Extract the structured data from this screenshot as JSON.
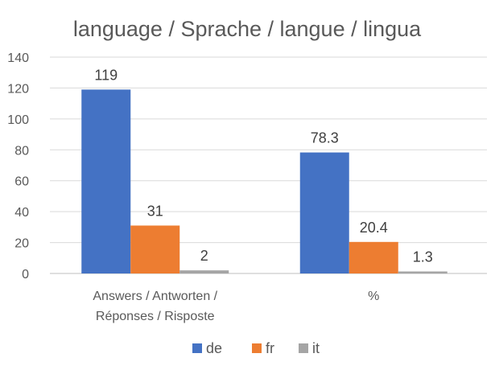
{
  "chart_data": {
    "type": "bar",
    "title": "language / Sprache / langue / lingua",
    "categories": [
      [
        "Answers / Antworten /",
        "Réponses / Risposte"
      ],
      [
        "%"
      ]
    ],
    "series": [
      {
        "name": "de",
        "color": "#4472c4",
        "values": [
          119,
          78.3
        ]
      },
      {
        "name": "fr",
        "color": "#ed7d31",
        "values": [
          31,
          20.4
        ]
      },
      {
        "name": "it",
        "color": "#a5a5a5",
        "values": [
          2,
          1.3
        ]
      }
    ],
    "ylim": [
      0,
      140
    ],
    "yticks": [
      0,
      20,
      40,
      60,
      80,
      100,
      120,
      140
    ],
    "grid": true,
    "legend": "bottom"
  }
}
